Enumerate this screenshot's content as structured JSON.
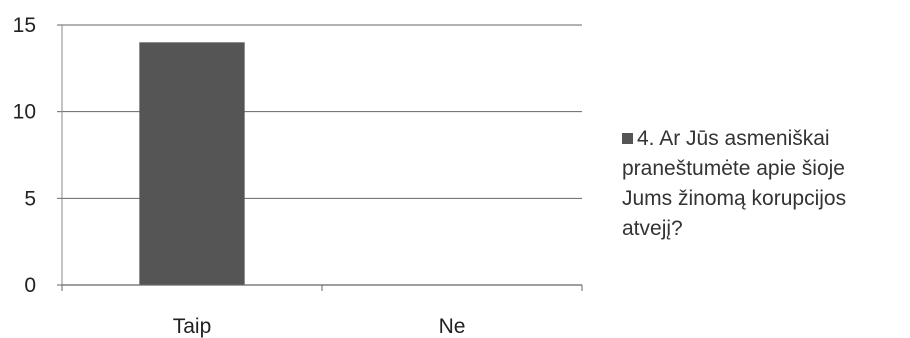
{
  "chart_data": {
    "type": "bar",
    "categories": [
      "Taip",
      "Ne"
    ],
    "series": [
      {
        "name": "4. Ar Jūs asmeniškai praneštumėte apie šioje Jums žinomą korupcijos atvejį?",
        "values": [
          14,
          0
        ],
        "color": "#555555"
      }
    ],
    "ylim": [
      0,
      15
    ],
    "yticks": [
      0,
      5,
      10,
      15
    ],
    "grid": true,
    "legend_position": "right"
  },
  "legend": {
    "lines": [
      "4. Ar Jūs asmeniškai",
      "praneštumėte apie šioje",
      "Jums žinomą korupcijos",
      "atvejį?"
    ]
  }
}
